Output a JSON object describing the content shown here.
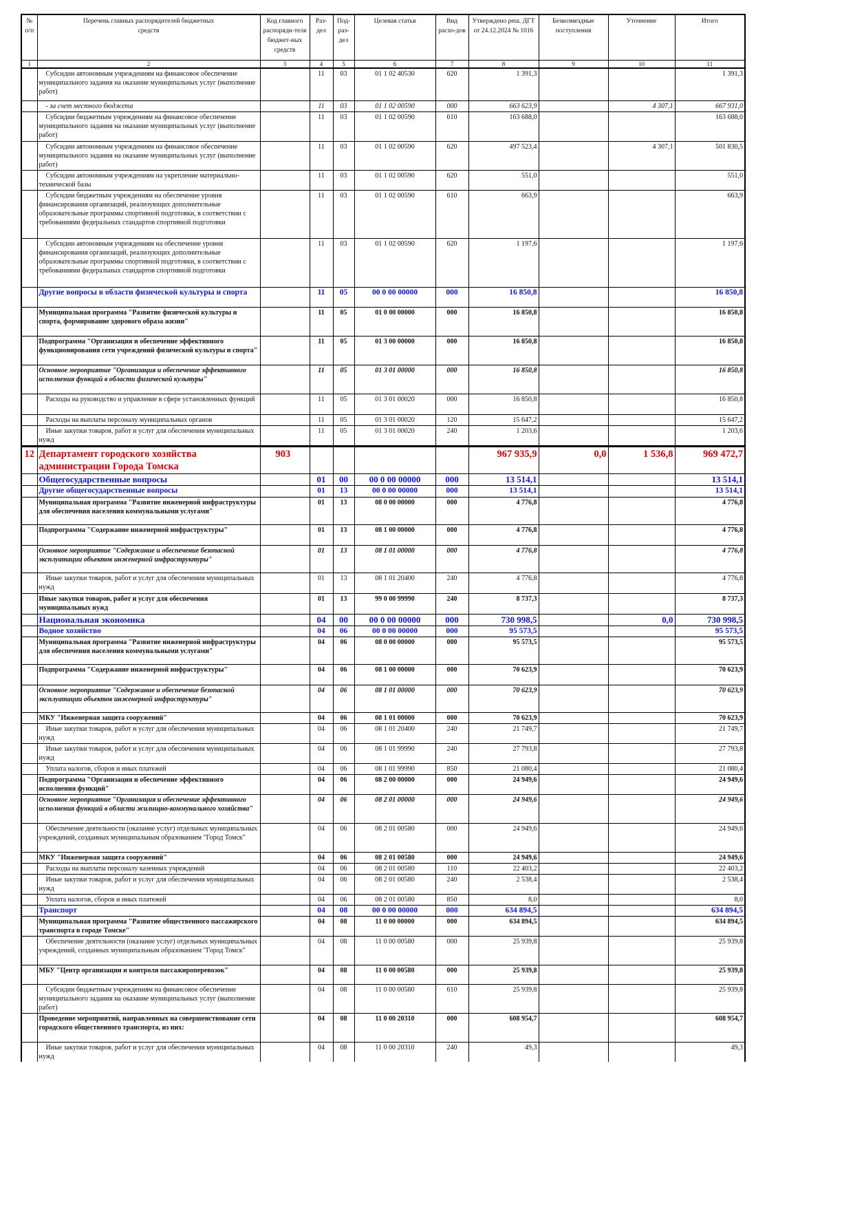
{
  "header": {
    "n": "№ п/п",
    "name": "Перечень главных распорядителей бюджетных средств",
    "code": "Код главного распоряди-теля бюджет-ных средств",
    "razdel": "Раз-дел",
    "podrazdel": "Под-раз-дел",
    "cs": "Целевая статья",
    "vr": "Вид расхо-дов",
    "approved": "Утверждено реш. ДГТ от 24.12.2024 № 1016",
    "free": "Безвозмездные поступления",
    "clar": "Уточнение",
    "total": "Итого"
  },
  "col_numbers": [
    "1",
    "2",
    "3",
    "4",
    "5",
    "6",
    "7",
    "8",
    "9",
    "10",
    "11"
  ],
  "rows": [
    {
      "style": "normal",
      "n": "",
      "name": "Субсидии автономным учреждениям на финансовое обеспечение муниципального задания на оказание муниципальных услуг (выполнение работ)",
      "code": "",
      "razdel": "11",
      "podrazdel": "03",
      "cs": "01 1 02 40530",
      "vr": "620",
      "approved": "1 391,3",
      "free": "",
      "clar": "",
      "total": "1 391,3"
    },
    {
      "style": "italic",
      "n": "",
      "name": "- за счет местного бюджета",
      "code": "",
      "razdel": "11",
      "podrazdel": "03",
      "cs": "01 1 02 00590",
      "vr": "000",
      "approved": "663 623,9",
      "free": "",
      "clar": "4 307,1",
      "total": "667 931,0"
    },
    {
      "style": "normal",
      "n": "",
      "name": "Субсидии бюджетным учреждениям на финансовое обеспечение муниципального задания на оказание  муниципальных услуг (выполнение работ)",
      "code": "",
      "razdel": "11",
      "podrazdel": "03",
      "cs": "01 1 02 00590",
      "vr": "610",
      "approved": "163 688,0",
      "free": "",
      "clar": "",
      "total": "163 688,0"
    },
    {
      "style": "normal",
      "n": "",
      "name": "Субсидии автономным учреждениям на финансовое обеспечение муниципального задания на оказание муниципальных услуг (выполнение работ)",
      "code": "",
      "razdel": "11",
      "podrazdel": "03",
      "cs": "01 1 02 00590",
      "vr": "620",
      "approved": "497 523,4",
      "free": "",
      "clar": "4 307,1",
      "total": "501 830,5"
    },
    {
      "style": "normal",
      "n": "",
      "name": "Субсидии автономным учреждениям на укрепление материально-технической базы",
      "code": "",
      "razdel": "11",
      "podrazdel": "03",
      "cs": "01 1 02 00590",
      "vr": "620",
      "approved": "551,0",
      "free": "",
      "clar": "",
      "total": "551,0"
    },
    {
      "style": "normal",
      "n": "",
      "name": "Субсидии бюджетным учреждениям на обеспечение уровня финансирования организаций, реализующих дополнительные образовательные программы спортивной подготовки, в соответствии с требованиями федеральных стандартов спортивной подготовки",
      "code": "",
      "razdel": "11",
      "podrazdel": "03",
      "cs": "01 1 02 00590",
      "vr": "610",
      "approved": "663,9",
      "free": "",
      "clar": "",
      "total": "663,9"
    },
    {
      "style": "normal",
      "n": "",
      "name": "Субсидии автономным учреждениям на обеспечение уровня финансирования организаций, реализующих дополнительные образовательные программы спортивной подготовки, в соответствии с требованиями федеральных стандартов спортивной подготовки",
      "code": "",
      "razdel": "11",
      "podrazdel": "03",
      "cs": "01 1 02 00590",
      "vr": "620",
      "approved": "1 197,6",
      "free": "",
      "clar": "",
      "total": "1 197,6"
    },
    {
      "style": "blue",
      "n": "",
      "name": "Другие вопросы в области физической культуры и спорта",
      "code": "",
      "razdel": "11",
      "podrazdel": "05",
      "cs": "00 0 00 00000",
      "vr": "000",
      "approved": "16 850,8",
      "free": "",
      "clar": "",
      "total": "16 850,8"
    },
    {
      "style": "bold",
      "n": "",
      "name": "Муниципальная программа \"Развитие физической культуры и спорта, формирование здорового образа жизни\"",
      "code": "",
      "razdel": "11",
      "podrazdel": "05",
      "cs": "01 0 00 00000",
      "vr": "000",
      "approved": "16 850,8",
      "free": "",
      "clar": "",
      "total": "16 850,8"
    },
    {
      "style": "bold",
      "n": "",
      "name": "Подпрограмма \"Организация и обеспечение эффективного функционирования сети учреждений физической культуры и спорта\"",
      "code": "",
      "razdel": "11",
      "podrazdel": "05",
      "cs": "01 3 00 00000",
      "vr": "000",
      "approved": "16 850,8",
      "free": "",
      "clar": "",
      "total": "16 850,8"
    },
    {
      "style": "bolditalic",
      "n": "",
      "name": "Основное мероприятие \"Организация и обеспечение эффективного исполнения функций в области физической культуры\"",
      "code": "",
      "razdel": "11",
      "podrazdel": "05",
      "cs": "01 3 01 00000",
      "vr": "000",
      "approved": "16 850,8",
      "free": "",
      "clar": "",
      "total": "16 850,8"
    },
    {
      "style": "normal",
      "n": "",
      "name": "Расходы на руководство и управление в сфере установленных функций",
      "code": "",
      "razdel": "11",
      "podrazdel": "05",
      "cs": "01 3 01 00020",
      "vr": "000",
      "approved": "16 850,8",
      "free": "",
      "clar": "",
      "total": "16 850,8"
    },
    {
      "style": "normal",
      "n": "",
      "name": "Расходы на выплаты персоналу муниципальных органов",
      "code": "",
      "razdel": "11",
      "podrazdel": "05",
      "cs": "01 3 01 00020",
      "vr": "120",
      "approved": "15 647,2",
      "free": "",
      "clar": "",
      "total": "15 647,2"
    },
    {
      "style": "normal",
      "n": "",
      "name": "Иные закупки товаров, работ и услуг для обеспечения муниципальных нужд",
      "code": "",
      "razdel": "11",
      "podrazdel": "05",
      "cs": "01 3 01 00020",
      "vr": "240",
      "approved": "1 203,6",
      "free": "",
      "clar": "",
      "total": "1 203,6"
    },
    {
      "style": "red",
      "n": "12",
      "name": "Департамент городского хозяйства администрации Города Томска",
      "code": "903",
      "razdel": "",
      "podrazdel": "",
      "cs": "",
      "vr": "",
      "approved": "967 935,9",
      "free": "0,0",
      "clar": "1 536,8",
      "total": "969 472,7"
    },
    {
      "style": "bluebig",
      "n": "",
      "name": "Общегосударственные вопросы",
      "code": "",
      "razdel": "01",
      "podrazdel": "00",
      "cs": "00 0 00 00000",
      "vr": "000",
      "approved": "13 514,1",
      "free": "",
      "clar": "",
      "total": "13 514,1"
    },
    {
      "style": "blue",
      "n": "",
      "name": "Другие общегосударственные вопросы",
      "code": "",
      "razdel": "01",
      "podrazdel": "13",
      "cs": "00 0 00 00000",
      "vr": "000",
      "approved": "13 514,1",
      "free": "",
      "clar": "",
      "total": "13 514,1"
    },
    {
      "style": "bold",
      "n": "",
      "name": "Муниципальная программа \"Развитие инженерной инфраструктуры для обеспечения населения коммунальными услугами\"",
      "code": "",
      "razdel": "01",
      "podrazdel": "13",
      "cs": "08 0 00 00000",
      "vr": "000",
      "approved": "4 776,8",
      "free": "",
      "clar": "",
      "total": "4 776,8"
    },
    {
      "style": "bold",
      "n": "",
      "name": "Подпрограмма \"Содержание инженерной инфраструктуры\"",
      "code": "",
      "razdel": "01",
      "podrazdel": "13",
      "cs": "08 1 00 00000",
      "vr": "000",
      "approved": "4 776,8",
      "free": "",
      "clar": "",
      "total": "4 776,8"
    },
    {
      "style": "bolditalic",
      "n": "",
      "name": "Основное мероприятие \"Содержание и обеспечение безопасной эксплуатации объектов инженерной инфраструктуры\"",
      "code": "",
      "razdel": "01",
      "podrazdel": "13",
      "cs": "08 1 01 00000",
      "vr": "000",
      "approved": "4 776,8",
      "free": "",
      "clar": "",
      "total": "4 776,8"
    },
    {
      "style": "normal",
      "n": "",
      "name": "Иные закупки товаров, работ и услуг для обеспечения муниципальных нужд",
      "code": "",
      "razdel": "01",
      "podrazdel": "13",
      "cs": "08 1 01 20400",
      "vr": "240",
      "approved": "4 776,8",
      "free": "",
      "clar": "",
      "total": "4 776,8"
    },
    {
      "style": "bold",
      "n": "",
      "name": "Иные закупки товаров, работ и услуг для обеспечения муниципальных нужд",
      "code": "",
      "razdel": "01",
      "podrazdel": "13",
      "cs": "99 0 00 99990",
      "vr": "240",
      "approved": "8 737,3",
      "free": "",
      "clar": "",
      "total": "8 737,3"
    },
    {
      "style": "bluebig",
      "n": "",
      "name": "Национальная экономика",
      "code": "",
      "razdel": "04",
      "podrazdel": "00",
      "cs": "00 0 00 00000",
      "vr": "000",
      "approved": "730 998,5",
      "free": "",
      "clar": "0,0",
      "total": "730 998,5"
    },
    {
      "style": "blue",
      "n": "",
      "name": "Водное хозяйство",
      "code": "",
      "razdel": "04",
      "podrazdel": "06",
      "cs": "00 0 00 00000",
      "vr": "000",
      "approved": "95 573,5",
      "free": "",
      "clar": "",
      "total": "95 573,5"
    },
    {
      "style": "bold",
      "n": "",
      "name": "Муниципальная программа \"Развитие инженерной инфраструктуры для обеспечения населения коммунальными услугами\"",
      "code": "",
      "razdel": "04",
      "podrazdel": "06",
      "cs": "08 0 00 00000",
      "vr": "000",
      "approved": "95 573,5",
      "free": "",
      "clar": "",
      "total": "95 573,5"
    },
    {
      "style": "bold",
      "n": "",
      "name": "Подпрограмма \"Содержание инженерной инфраструктуры\"",
      "code": "",
      "razdel": "04",
      "podrazdel": "06",
      "cs": "08 1 00 00000",
      "vr": "000",
      "approved": "70 623,9",
      "free": "",
      "clar": "",
      "total": "70 623,9"
    },
    {
      "style": "bolditalic",
      "n": "",
      "name": "Основное мероприятие \"Содержание и обеспечение безопасной эксплуатации объектов инженерной инфраструктуры\"",
      "code": "",
      "razdel": "04",
      "podrazdel": "06",
      "cs": "08 1 01 00000",
      "vr": "000",
      "approved": "70 623,9",
      "free": "",
      "clar": "",
      "total": "70 623,9"
    },
    {
      "style": "bold",
      "n": "",
      "name": "МКУ \"Инженерная защита сооружений\"",
      "code": "",
      "razdel": "04",
      "podrazdel": "06",
      "cs": "08 1 01 00000",
      "vr": "000",
      "approved": "70 623,9",
      "free": "",
      "clar": "",
      "total": "70 623,9"
    },
    {
      "style": "normal",
      "n": "",
      "name": "Иные закупки товаров, работ и услуг для обеспечения муниципальных нужд",
      "code": "",
      "razdel": "04",
      "podrazdel": "06",
      "cs": "08 1 01 20400",
      "vr": "240",
      "approved": "21 749,7",
      "free": "",
      "clar": "",
      "total": "21 749,7"
    },
    {
      "style": "normal",
      "n": "",
      "name": "Иные закупки товаров, работ и услуг для обеспечения муниципальных нужд",
      "code": "",
      "razdel": "04",
      "podrazdel": "06",
      "cs": "08 1 01 99990",
      "vr": "240",
      "approved": "27 793,8",
      "free": "",
      "clar": "",
      "total": "27 793,8"
    },
    {
      "style": "normal",
      "n": "",
      "name": "Уплата налогов, сборов и иных платежей",
      "code": "",
      "razdel": "04",
      "podrazdel": "06",
      "cs": "08 1 01 99990",
      "vr": "850",
      "approved": "21 080,4",
      "free": "",
      "clar": "",
      "total": "21 080,4"
    },
    {
      "style": "bold",
      "n": "",
      "name": "Подпрограмма \"Организация и обеспечение эффективного исполнения функций\"",
      "code": "",
      "razdel": "04",
      "podrazdel": "06",
      "cs": "08 2 00 00000",
      "vr": "000",
      "approved": "24 949,6",
      "free": "",
      "clar": "",
      "total": "24 949,6"
    },
    {
      "style": "bolditalic",
      "n": "",
      "name": "Основное мероприятие \"Организация и обеспечение эффективного исполнения функций в области жилищно-коммунального хозяйства\"",
      "code": "",
      "razdel": "04",
      "podrazdel": "06",
      "cs": "08 2 01 00000",
      "vr": "000",
      "approved": "24 949,6",
      "free": "",
      "clar": "",
      "total": "24 949,6"
    },
    {
      "style": "normal",
      "n": "",
      "name": "Обеспечение деятельности (оказание услуг) отдельных муниципальных учреждений, созданных муниципальным образованием \"Город Томск\"",
      "code": "",
      "razdel": "04",
      "podrazdel": "06",
      "cs": "08 2 01 00580",
      "vr": "000",
      "approved": "24 949,6",
      "free": "",
      "clar": "",
      "total": "24 949,6"
    },
    {
      "style": "bold",
      "n": "",
      "name": "МКУ \"Инженерная защита сооружений\"",
      "code": "",
      "razdel": "04",
      "podrazdel": "06",
      "cs": "08 2 01 00580",
      "vr": "000",
      "approved": "24 949,6",
      "free": "",
      "clar": "",
      "total": "24 949,6"
    },
    {
      "style": "normal",
      "n": "",
      "name": "Расходы на выплаты персоналу казенных учреждений",
      "code": "",
      "razdel": "04",
      "podrazdel": "06",
      "cs": "08 2 01 00580",
      "vr": "110",
      "approved": "22 403,2",
      "free": "",
      "clar": "",
      "total": "22 403,2"
    },
    {
      "style": "normal",
      "n": "",
      "name": "Иные закупки товаров, работ и услуг для обеспечения муниципальных нужд",
      "code": "",
      "razdel": "04",
      "podrazdel": "06",
      "cs": "08 2 01 00580",
      "vr": "240",
      "approved": "2 538,4",
      "free": "",
      "clar": "",
      "total": "2 538,4"
    },
    {
      "style": "normal",
      "n": "",
      "name": "Уплата налогов, сборов и иных платежей",
      "code": "",
      "razdel": "04",
      "podrazdel": "06",
      "cs": "08 2 01 00580",
      "vr": "850",
      "approved": "8,0",
      "free": "",
      "clar": "",
      "total": "8,0"
    },
    {
      "style": "blue",
      "n": "",
      "name": "Транспорт",
      "code": "",
      "razdel": "04",
      "podrazdel": "08",
      "cs": "00 0 00 00000",
      "vr": "000",
      "approved": "634 894,5",
      "free": "",
      "clar": "",
      "total": "634 894,5"
    },
    {
      "style": "bold",
      "n": "",
      "name": "Муниципальная программа \"Развитие общественного пассажирского транспорта в городе Томске\"",
      "code": "",
      "razdel": "04",
      "podrazdel": "08",
      "cs": "11 0 00 00000",
      "vr": "000",
      "approved": "634 894,5",
      "free": "",
      "clar": "",
      "total": "634 894,5"
    },
    {
      "style": "normal",
      "n": "",
      "name": "Обеспечение деятельности (оказание услуг) отдельных муниципальных учреждений, созданных муниципальным образованием \"Город Томск\"",
      "code": "",
      "razdel": "04",
      "podrazdel": "08",
      "cs": "11 0 00 00580",
      "vr": "000",
      "approved": "25 939,8",
      "free": "",
      "clar": "",
      "total": "25 939,8"
    },
    {
      "style": "bold",
      "n": "",
      "name": "МБУ \"Центр организации и контроля пассажироперевозок\"",
      "code": "",
      "razdel": "04",
      "podrazdel": "08",
      "cs": "11 0 00 00580",
      "vr": "000",
      "approved": "25 939,8",
      "free": "",
      "clar": "",
      "total": "25 939,8"
    },
    {
      "style": "normal",
      "n": "",
      "name": "Субсидии бюджетным учреждениям на финансовое обеспечение муниципального задания на оказание муниципальных услуг (выполнение работ)",
      "code": "",
      "razdel": "04",
      "podrazdel": "08",
      "cs": "11 0 00 00580",
      "vr": "610",
      "approved": "25 939,8",
      "free": "",
      "clar": "",
      "total": "25 939,8"
    },
    {
      "style": "bold",
      "n": "",
      "name": "Проведение мероприятий, направленных на совершенствование сети городского общественного транспорта, из них:",
      "code": "",
      "razdel": "04",
      "podrazdel": "08",
      "cs": "11 0 00 20310",
      "vr": "000",
      "approved": "608 954,7",
      "free": "",
      "clar": "",
      "total": "608 954,7"
    },
    {
      "style": "normal",
      "n": "",
      "name": "Иные закупки товаров, работ и услуг для обеспечения муниципальных нужд",
      "code": "",
      "razdel": "04",
      "podrazdel": "08",
      "cs": "11 0 00 20310",
      "vr": "240",
      "approved": "49,3",
      "free": "",
      "clar": "",
      "total": "49,3"
    }
  ]
}
